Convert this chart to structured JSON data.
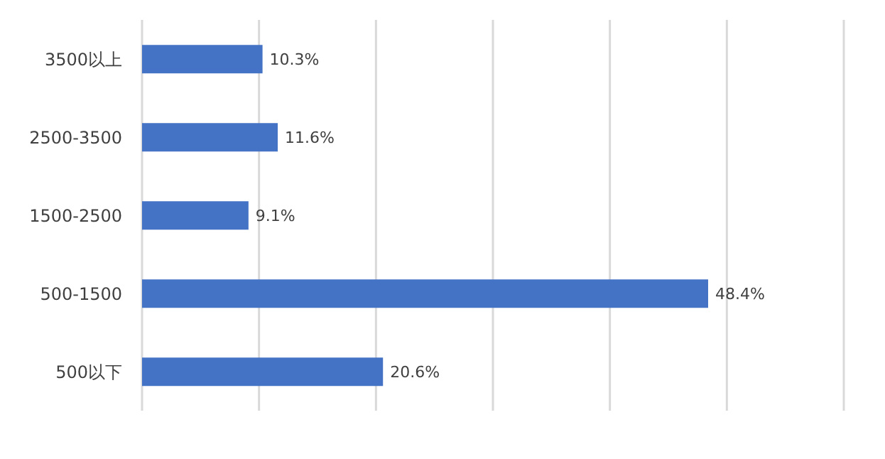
{
  "chart_data": {
    "type": "bar",
    "orientation": "horizontal",
    "categories": [
      "3500以上",
      "2500-3500",
      "1500-2500",
      "500-1500",
      "500以下"
    ],
    "values": [
      10.3,
      11.6,
      9.1,
      48.4,
      20.6
    ],
    "value_labels": [
      "10.3%",
      "11.6%",
      "9.1%",
      "48.4%",
      "20.6%"
    ],
    "color": "#4472c4",
    "xlim": [
      0,
      60
    ],
    "xticks": [
      {
        "value": 0,
        "label": null
      },
      {
        "value": 10,
        "label": null
      },
      {
        "value": 20,
        "label": null
      },
      {
        "value": 30,
        "label": null
      },
      {
        "value": 40,
        "label": null
      },
      {
        "value": 50,
        "label": null
      },
      {
        "value": 60,
        "label": null
      }
    ],
    "grid": "x",
    "tick_labels": "y",
    "legend": false
  }
}
